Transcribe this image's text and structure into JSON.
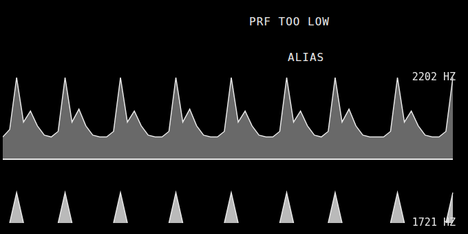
{
  "chart_data": {
    "type": "line",
    "annotations": [
      "PRF TOO LOW",
      "ALIAS"
    ],
    "categories": [
      null,
      null,
      null,
      null,
      null,
      null,
      null,
      null,
      null,
      null,
      null,
      null,
      null,
      null,
      null,
      null,
      null,
      null,
      null,
      null,
      null,
      null,
      null,
      null,
      null,
      null,
      null,
      null,
      null,
      null,
      null,
      null,
      null,
      null,
      null,
      null,
      null,
      null,
      null,
      null,
      null,
      null,
      null,
      null,
      null,
      null,
      null,
      null,
      null,
      null,
      null,
      null,
      null,
      null,
      null,
      null,
      null,
      null,
      null,
      null,
      null,
      null,
      null,
      null,
      null,
      null
    ],
    "series": [
      {
        "color": "#e8e8e8",
        "values": [
          600,
          800,
          2202,
          1000,
          1300,
          900,
          650,
          600,
          750,
          2202,
          1000,
          1350,
          900,
          650,
          600,
          600,
          750,
          2202,
          1000,
          1300,
          900,
          650,
          600,
          600,
          750,
          2202,
          1000,
          1350,
          900,
          650,
          600,
          600,
          750,
          2202,
          1000,
          1300,
          900,
          650,
          600,
          600,
          750,
          2202,
          1000,
          1300,
          900,
          650,
          600,
          750,
          2202,
          1000,
          1350,
          900,
          650,
          600,
          600,
          600,
          750,
          2202,
          1000,
          1300,
          900,
          650,
          600,
          600,
          750,
          2202
        ]
      },
      {
        "color": "#e8e8e8",
        "values": [
          null,
          -1721,
          -900,
          -1721,
          null,
          null,
          null,
          null,
          -1721,
          -900,
          -1721,
          null,
          null,
          null,
          null,
          null,
          -1721,
          -900,
          -1721,
          null,
          null,
          null,
          null,
          null,
          -1721,
          -900,
          -1721,
          null,
          null,
          null,
          null,
          null,
          -1721,
          -900,
          -1721,
          null,
          null,
          null,
          null,
          null,
          -1721,
          -900,
          -1721,
          null,
          null,
          null,
          null,
          -1721,
          -900,
          -1721,
          null,
          null,
          null,
          null,
          null,
          null,
          -1721,
          -900,
          -1721,
          null,
          null,
          null,
          null,
          null,
          -1721,
          -900
        ]
      }
    ],
    "ylim": [
      -1721,
      2202
    ],
    "yticks": [
      {
        "value": 2202,
        "label": "2202 HZ"
      },
      {
        "value": -1721,
        "label": "1721 HZ"
      }
    ],
    "grid": false,
    "tick_labels": "y"
  }
}
